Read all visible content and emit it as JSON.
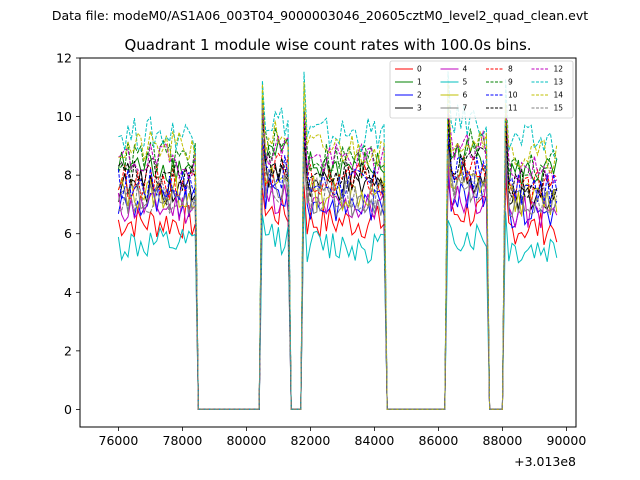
{
  "figure": {
    "suptitle": "Data file: modeM0/AS1A06_003T04_9000003046_20605cztM0_level2_quad_clean.evt"
  },
  "chart_data": {
    "type": "line",
    "title": "Quadrant 1 module wise count rates with 100.0s bins.",
    "xlabel": "",
    "ylabel": "",
    "x_offset_label": "+3.013e8",
    "xlim": [
      74800,
      90300
    ],
    "ylim": [
      -0.6,
      12.0
    ],
    "xticks": [
      76000,
      78000,
      80000,
      82000,
      84000,
      86000,
      88000,
      90000
    ],
    "yticks": [
      0,
      2,
      4,
      6,
      8,
      10,
      12
    ],
    "legend_position": "top-right",
    "segments": [
      {
        "start": 76000,
        "end": 78400
      },
      {
        "start": 80500,
        "end": 81300
      },
      {
        "start": 81800,
        "end": 84300
      },
      {
        "start": 86300,
        "end": 87500
      },
      {
        "start": 88100,
        "end": 89700
      }
    ],
    "bin_seconds": 100,
    "series": [
      {
        "name": "0",
        "color": "#ff0000",
        "dash": "solid",
        "level": 6.4
      },
      {
        "name": "1",
        "color": "#008000",
        "dash": "solid",
        "level": 8.3
      },
      {
        "name": "2",
        "color": "#0000ff",
        "dash": "solid",
        "level": 7.0
      },
      {
        "name": "3",
        "color": "#000000",
        "dash": "solid",
        "level": 7.6
      },
      {
        "name": "4",
        "color": "#bf00bf",
        "dash": "solid",
        "level": 6.9
      },
      {
        "name": "5",
        "color": "#00bfbf",
        "dash": "solid",
        "level": 5.6
      },
      {
        "name": "6",
        "color": "#bfbf00",
        "dash": "solid",
        "level": 7.4
      },
      {
        "name": "7",
        "color": "#808080",
        "dash": "solid",
        "level": 7.2
      },
      {
        "name": "8",
        "color": "#ff0000",
        "dash": "dashed",
        "level": 7.8
      },
      {
        "name": "9",
        "color": "#008000",
        "dash": "dashed",
        "level": 8.6
      },
      {
        "name": "10",
        "color": "#0000ff",
        "dash": "dashed",
        "level": 7.7
      },
      {
        "name": "11",
        "color": "#000000",
        "dash": "dashed",
        "level": 8.0
      },
      {
        "name": "12",
        "color": "#bf00bf",
        "dash": "dashed",
        "level": 8.5
      },
      {
        "name": "13",
        "color": "#00bfbf",
        "dash": "dashed",
        "level": 9.4
      },
      {
        "name": "14",
        "color": "#bfbf00",
        "dash": "dashed",
        "level": 8.9
      },
      {
        "name": "15",
        "color": "#808080",
        "dash": "dashed",
        "level": 7.3
      }
    ]
  }
}
